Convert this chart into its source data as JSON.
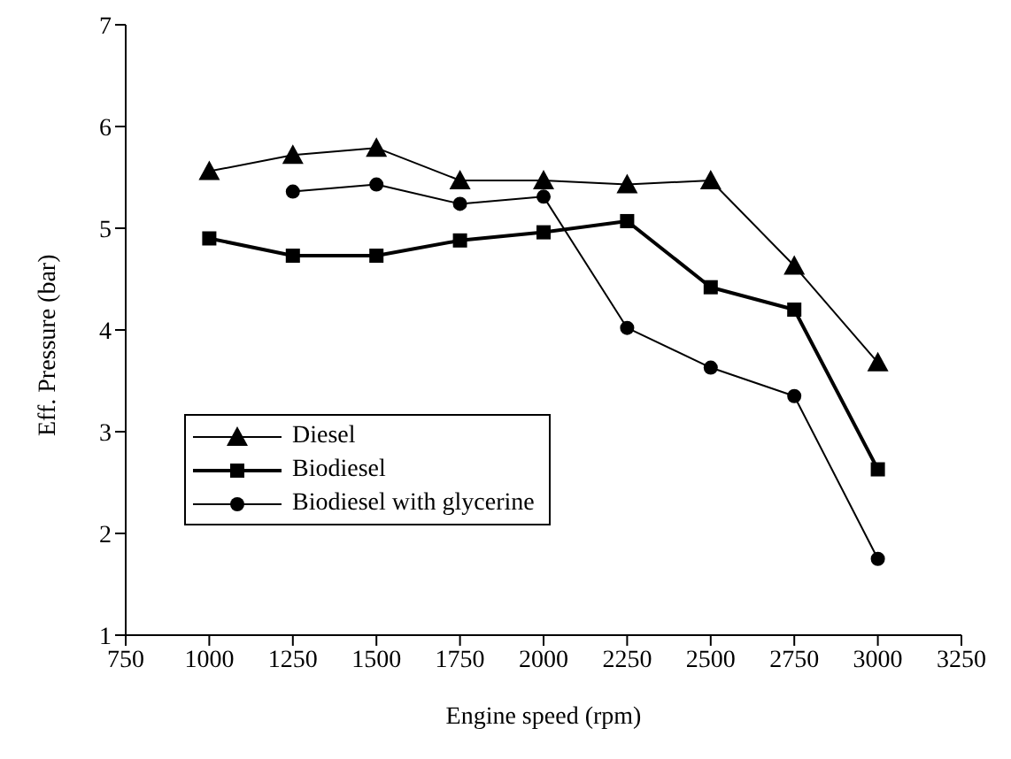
{
  "chart_data": {
    "type": "line",
    "xlabel": "Engine speed (rpm)",
    "ylabel": "Eff. Pressure (bar)",
    "x": [
      1000,
      1250,
      1500,
      1750,
      2000,
      2250,
      2500,
      2750,
      3000
    ],
    "series": [
      {
        "name": "Diesel",
        "color": "#000000",
        "marker": "triangle",
        "values": [
          5.56,
          5.72,
          5.79,
          5.47,
          5.47,
          5.43,
          5.47,
          4.63,
          3.68
        ]
      },
      {
        "name": "Biodiesel",
        "color": "#000000",
        "marker": "square",
        "values": [
          4.9,
          4.73,
          4.73,
          4.88,
          4.96,
          5.07,
          4.42,
          4.2,
          2.63
        ]
      },
      {
        "name": "Biodiesel with glycerine",
        "color": "#000000",
        "marker": "circle",
        "values": [
          null,
          5.36,
          5.43,
          5.24,
          5.31,
          4.02,
          3.63,
          3.35,
          1.75
        ]
      }
    ],
    "xlim": [
      750,
      3250
    ],
    "xticks": [
      750,
      1000,
      1250,
      1500,
      1750,
      2000,
      2250,
      2500,
      2750,
      3000,
      3250
    ],
    "ylim": [
      1,
      7
    ],
    "yticks": [
      1,
      2,
      3,
      4,
      5,
      6,
      7
    ],
    "grid": false,
    "legend": "bottom left",
    "line_style": "solid"
  }
}
